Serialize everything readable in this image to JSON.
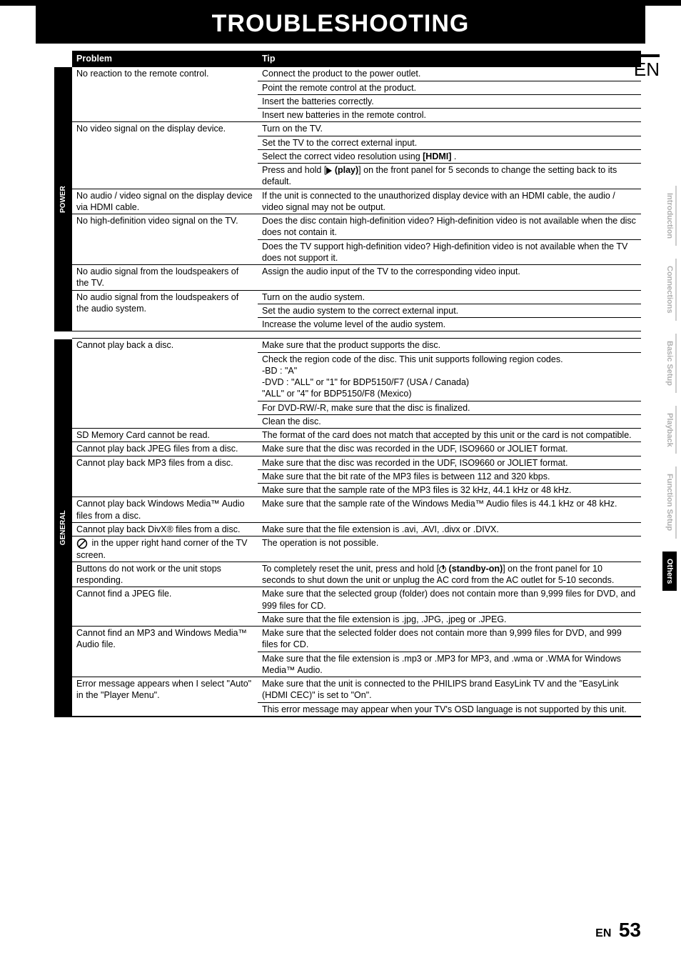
{
  "title": "TROUBLESHOOTING",
  "lang": "EN",
  "headers": {
    "problem": "Problem",
    "tip": "Tip"
  },
  "side_tabs": [
    {
      "label": "Introduction",
      "active": false
    },
    {
      "label": "Connections",
      "active": false
    },
    {
      "label": "Basic Setup",
      "active": false
    },
    {
      "label": "Playback",
      "active": false
    },
    {
      "label": "Function Setup",
      "active": false
    },
    {
      "label": "Others",
      "active": true
    }
  ],
  "sections": [
    {
      "label": "POWER",
      "rows": [
        {
          "problem": "No reaction to the remote control.",
          "tips": [
            "Connect the product to the power outlet.",
            "Point the remote control at the product.",
            "Insert the batteries correctly.",
            "Insert new batteries in the remote control."
          ]
        },
        {
          "problem": "No video signal on the display device.",
          "tips": [
            "Turn on the TV.",
            "Set the TV to the correct external input.",
            "Select the correct video resolution using [HDMI] .",
            "Press and hold [▶ (play)] on the front panel for 5 seconds to change the setting back to its default."
          ],
          "play_icon_row": 3
        },
        {
          "problem": "No audio / video signal on the display device via HDMI cable.",
          "tips": [
            "If the unit is connected to the unauthorized display device with an HDMI cable, the audio / video signal may not be output."
          ]
        },
        {
          "problem": "No high-definition video signal on the TV.",
          "tips": [
            "Does the disc contain high-definition video? High-definition video is not available when the disc does not contain it.",
            "Does the TV support high-definition video? High-definition video is not available when the TV does not support it."
          ]
        },
        {
          "problem": "No audio signal from the loudspeakers of the TV.",
          "tips": [
            "Assign the audio input of the TV to the corresponding video input."
          ]
        },
        {
          "problem": "No audio signal from the loudspeakers of the audio system.",
          "tips": [
            "Turn on the audio system.",
            "Set the audio system to the correct external input.",
            "Increase the volume level of the audio system."
          ]
        }
      ]
    },
    {
      "label": "GENERAL",
      "rows": [
        {
          "problem": "Cannot play back a disc.",
          "tips": [
            "Make sure that the product supports the disc.",
            "Check the region code of the disc. This unit supports following region codes.\n -BD   : \"A\"\n -DVD : \"ALL\" or \"1\" for BDP5150/F7 (USA / Canada)\n             \"ALL\" or \"4\" for BDP5150/F8 (Mexico)",
            "For DVD-RW/-R, make sure that the disc is finalized.",
            "Clean the disc."
          ]
        },
        {
          "problem": "SD Memory Card cannot be read.",
          "tips": [
            "The format of the card does not match that accepted by this unit or the card is not compatible."
          ]
        },
        {
          "problem": "Cannot play back JPEG files from a disc.",
          "tips": [
            "Make sure that the disc was recorded in the UDF, ISO9660 or JOLIET format."
          ]
        },
        {
          "problem": "Cannot play back MP3 files from a disc.",
          "tips": [
            "Make sure that the disc was recorded in the UDF, ISO9660 or JOLIET format.",
            "Make sure that the bit rate of the MP3 files is between 112 and 320 kbps.",
            "Make sure that the sample rate of the MP3 files is 32 kHz, 44.1 kHz or 48 kHz."
          ]
        },
        {
          "problem": "Cannot play back Windows Media™ Audio files from a disc.",
          "tips": [
            "Make sure that the sample rate of the Windows Media™ Audio files is 44.1 kHz or 48 kHz."
          ]
        },
        {
          "problem": "Cannot play back DivX® files from a disc.",
          "tips": [
            "Make sure that the file extension is .avi, .AVI, .divx or .DIVX."
          ]
        },
        {
          "problem": "ICON in the upper right hand corner of the TV screen.",
          "icon": true,
          "tips": [
            "The operation is not possible."
          ]
        },
        {
          "problem": "Buttons do not work or the unit stops responding.",
          "power_icon": true,
          "tips": [
            "To completely reset the unit, press and hold [⏻ (standby-on)] on the front panel for 10 seconds to shut down the unit or unplug the AC cord from the AC outlet for 5-10 seconds."
          ]
        },
        {
          "problem": "Cannot find a JPEG file.",
          "tips": [
            "Make sure that the selected group (folder) does not contain more than 9,999 files for DVD, and 999 files for CD.",
            "Make sure that the file extension is .jpg, .JPG, .jpeg or .JPEG."
          ]
        },
        {
          "problem": "Cannot find an MP3 and Windows Media™ Audio file.",
          "tips": [
            "Make sure that the selected folder does not contain more than 9,999 files for DVD, and 999 files for CD.",
            "Make sure that the file extension is .mp3 or .MP3 for MP3, and .wma or .WMA for Windows Media™ Audio."
          ]
        },
        {
          "problem": "Error message appears when I select \"Auto\" in the \"Player Menu\".",
          "tips": [
            "Make sure that the unit is connected to the PHILIPS brand EasyLink TV and the \"EasyLink (HDMI CEC)\" is set to \"On\".",
            "This error message may appear when your TV's OSD language is not supported by this unit."
          ]
        }
      ]
    }
  ],
  "footer": {
    "lang": "EN",
    "page": "53"
  }
}
